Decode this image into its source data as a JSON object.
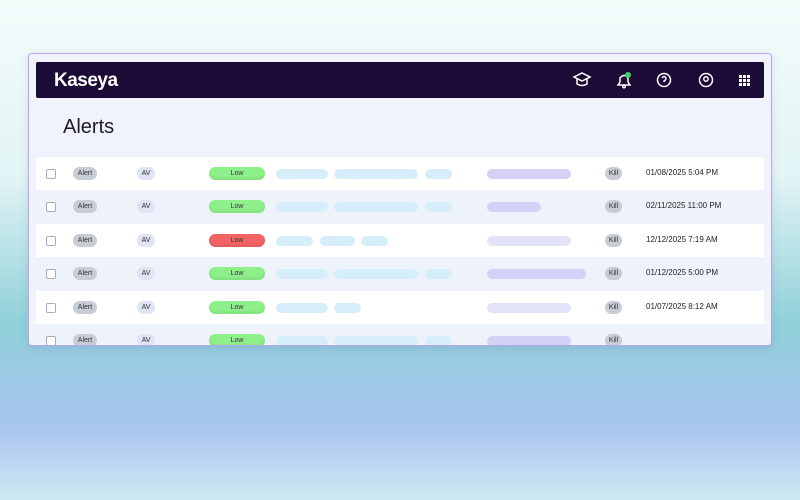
{
  "header": {
    "brand": "Kaseya"
  },
  "page": {
    "title": "Alerts"
  },
  "table": {
    "rows": [
      {
        "type": "Alert",
        "source": "AV",
        "severity": "Low",
        "severity_color": "#8ef08a",
        "action": "Kill",
        "date": "01/08/2025 5:04 PM"
      },
      {
        "type": "Alert",
        "source": "AV",
        "severity": "Low",
        "severity_color": "#8ef08a",
        "action": "Kill",
        "date": "02/11/2025 11:00 PM"
      },
      {
        "type": "Alert",
        "source": "AV",
        "severity": "Low",
        "severity_color": "#f26464",
        "action": "Kill",
        "date": "12/12/2025 7:19 AM"
      },
      {
        "type": "Alert",
        "source": "AV",
        "severity": "Low",
        "severity_color": "#8ef08a",
        "action": "Kill",
        "date": "01/12/2025 5:00 PM"
      },
      {
        "type": "Alert",
        "source": "AV",
        "severity": "Low",
        "severity_color": "#8ef08a",
        "action": "Kill",
        "date": "01/07/2025 8:12 AM"
      },
      {
        "type": "Alert",
        "source": "AV",
        "severity": "Low",
        "severity_color": "#8ef08a",
        "action": "Kill"
      }
    ]
  }
}
